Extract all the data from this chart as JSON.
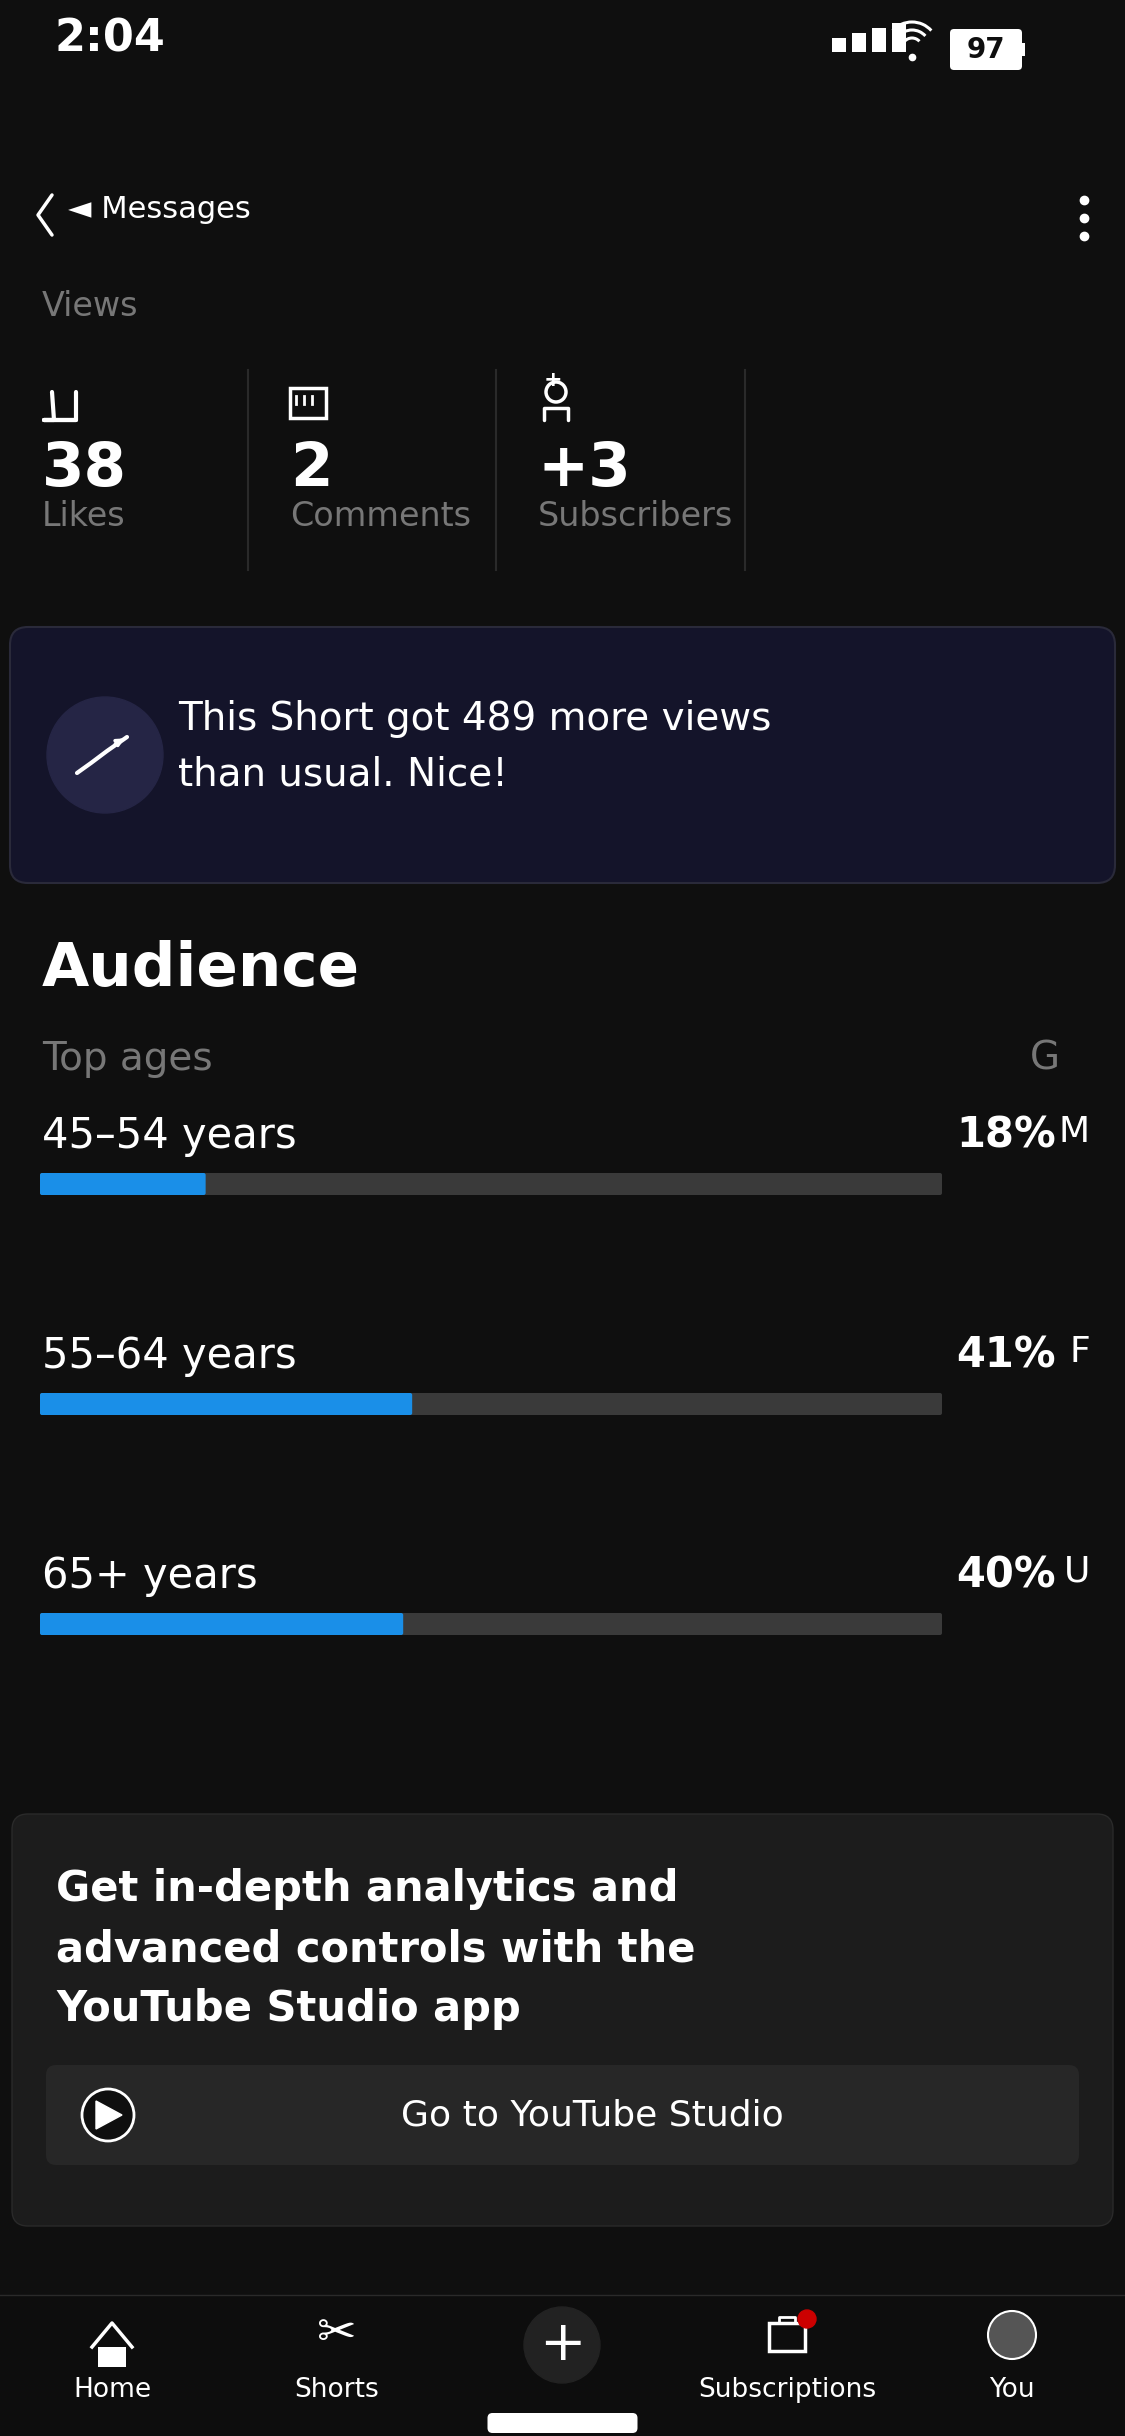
{
  "bg_color": "#0f0f0f",
  "status_time": "2:04",
  "status_battery": "97",
  "back_label": "◄ Messages",
  "views_label": "Views",
  "likes_value": "38",
  "likes_label": "Likes",
  "comments_value": "2",
  "comments_label": "Comments",
  "subscribers_value": "+3",
  "subscribers_label": "Subscribers",
  "notif_line1": "This Short got 489 more views",
  "notif_line2": "than usual. Nice!",
  "audience_title": "Audience",
  "top_ages_label": "Top ages",
  "gender_label": "G",
  "age_groups": [
    "45–54 years",
    "55–64 years",
    "65+ years"
  ],
  "age_percentages": [
    18,
    41,
    40
  ],
  "age_pct_labels": [
    "18%",
    "41%",
    "40%"
  ],
  "gender_side_labels": [
    "M",
    "F",
    "U"
  ],
  "bar_filled_color": "#1a8fe8",
  "bar_bg_color": "#3a3a3a",
  "analytics_line1": "Get in-depth analytics and",
  "analytics_line2": "advanced controls with the",
  "analytics_line3": "YouTube Studio app",
  "studio_btn_text": "Go to YouTube Studio",
  "nav_items": [
    "Home",
    "Shorts",
    "",
    "Subscriptions",
    "You"
  ],
  "white": "#ffffff",
  "gray": "#777777",
  "sep_color": "#2a2a2a",
  "notif_box_color": "#14142a",
  "promo_box_color": "#1c1c1c",
  "icon_circle_color": "#252545",
  "nav_bg_color": "#0d0d0d",
  "btn_bg_color": "#272727"
}
